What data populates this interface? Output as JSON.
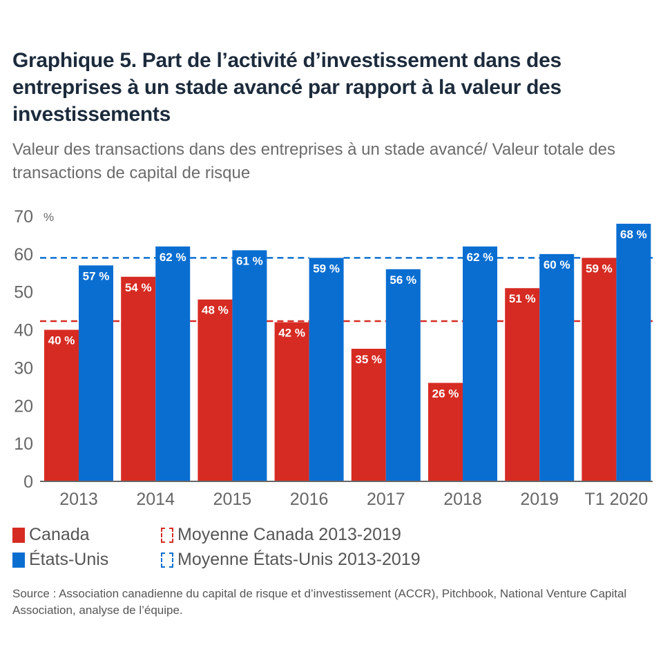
{
  "title": "Graphique 5. Part de l’activité d’investissement dans des entreprises à un stade avancé par rapport à la valeur des investissements",
  "subtitle": "Valeur des transactions dans des entreprises à un stade avancé/ Valeur totale des transactions de capital de risque",
  "source": "Source : Association canadienne du capital de risque et d’investissement (ACCR), Pitchbook, National Venture Capital Association, analyse de l’équipe.",
  "colors": {
    "canada": "#d62b22",
    "us": "#0a6ed1",
    "axis_text": "#666666",
    "axis_line": "#666666",
    "label_text": "#ffffff"
  },
  "legend": {
    "canada": "Canada",
    "us": "États-Unis",
    "canada_avg": "Moyenne Canada 2013-2019",
    "us_avg": "Moyenne États-Unis 2013-2019"
  },
  "chart_data": {
    "type": "bar",
    "title": "Graphique 5. Part de l’activité d’investissement dans des entreprises à un stade avancé par rapport à la valeur des investissements",
    "subtitle": "Valeur des transactions dans des entreprises à un stade avancé/ Valeur totale des transactions de capital de risque",
    "xlabel": "",
    "ylabel": "%",
    "y_unit_label": "%",
    "ylim": [
      0,
      70
    ],
    "yticks": [
      0,
      10,
      20,
      30,
      40,
      50,
      60,
      70
    ],
    "grid": false,
    "legend_position": "bottom-left",
    "categories": [
      "2013",
      "2014",
      "2015",
      "2016",
      "2017",
      "2018",
      "2019",
      "T1 2020"
    ],
    "series": [
      {
        "name": "Canada",
        "color": "#d62b22",
        "values": [
          40,
          54,
          48,
          42,
          35,
          26,
          51,
          59
        ],
        "labels": [
          "40 %",
          "54 %",
          "48 %",
          "42 %",
          "35 %",
          "26 %",
          "51 %",
          "59 %"
        ]
      },
      {
        "name": "États-Unis",
        "color": "#0a6ed1",
        "values": [
          57,
          62,
          61,
          59,
          56,
          62,
          60,
          68
        ],
        "labels": [
          "57 %",
          "62 %",
          "61 %",
          "59 %",
          "56 %",
          "62 %",
          "60 %",
          "68 %"
        ]
      }
    ],
    "reference_lines": [
      {
        "name": "Moyenne Canada 2013-2019",
        "value": 42.3,
        "color": "#d62b22",
        "style": "dashed"
      },
      {
        "name": "Moyenne États-Unis 2013-2019",
        "value": 59.0,
        "color": "#0a6ed1",
        "style": "dashed"
      }
    ]
  }
}
